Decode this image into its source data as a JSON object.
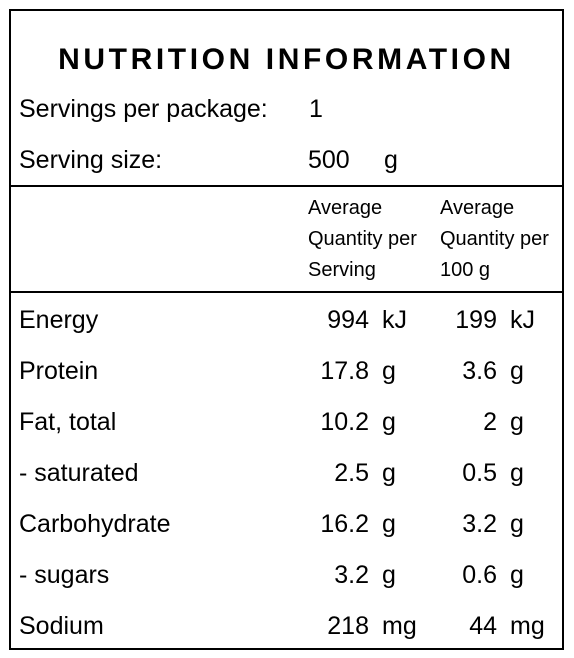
{
  "title": "NUTRITION INFORMATION",
  "servings": {
    "label": "Servings per package:",
    "value": "1"
  },
  "serving_size": {
    "label": "Serving size:",
    "value": "500",
    "unit": "g"
  },
  "columns": {
    "per_serving": [
      "Average",
      "Quantity per",
      "Serving"
    ],
    "per_100g": [
      "Average",
      "Quantity per",
      "100 g"
    ]
  },
  "rows": [
    {
      "label": "Energy",
      "serving": "994",
      "serving_unit": "kJ",
      "per100": "199",
      "per100_unit": "kJ"
    },
    {
      "label": "Protein",
      "serving": "17.8",
      "serving_unit": "g",
      "per100": "3.6",
      "per100_unit": "g"
    },
    {
      "label": "Fat, total",
      "serving": "10.2",
      "serving_unit": "g",
      "per100": "2",
      "per100_unit": "g"
    },
    {
      "label": "- saturated",
      "serving": "2.5",
      "serving_unit": "g",
      "per100": "0.5",
      "per100_unit": "g"
    },
    {
      "label": "Carbohydrate",
      "serving": "16.2",
      "serving_unit": "g",
      "per100": "3.2",
      "per100_unit": "g"
    },
    {
      "label": "- sugars",
      "serving": "3.2",
      "serving_unit": "g",
      "per100": "0.6",
      "per100_unit": "g"
    },
    {
      "label": "Sodium",
      "serving": "218",
      "serving_unit": "mg",
      "per100": "44",
      "per100_unit": "mg"
    }
  ]
}
